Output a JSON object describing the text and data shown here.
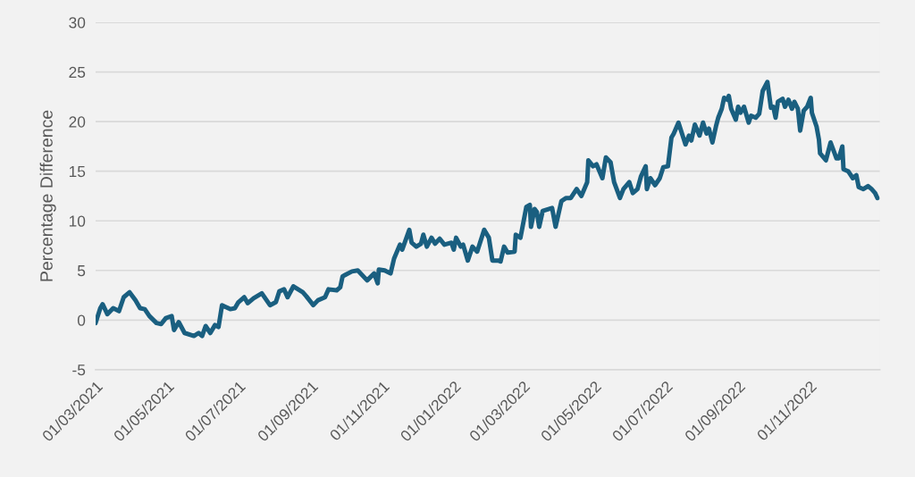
{
  "chart_data": {
    "type": "line",
    "ylabel": "Percentage Difference",
    "xlim": [
      "2021-03-01",
      "2022-12-31"
    ],
    "ylim": [
      -5,
      30
    ],
    "yticks": [
      -5,
      0,
      5,
      10,
      15,
      20,
      25,
      30
    ],
    "xticks": [
      {
        "value": "2021-03-01",
        "label": "01/03/2021"
      },
      {
        "value": "2021-05-01",
        "label": "01/05/2021"
      },
      {
        "value": "2021-07-01",
        "label": "01/07/2021"
      },
      {
        "value": "2021-09-01",
        "label": "01/09/2021"
      },
      {
        "value": "2021-11-01",
        "label": "01/11/2021"
      },
      {
        "value": "2022-01-01",
        "label": "01/01/2022"
      },
      {
        "value": "2022-03-01",
        "label": "01/03/2022"
      },
      {
        "value": "2022-05-01",
        "label": "01/05/2022"
      },
      {
        "value": "2022-07-01",
        "label": "01/07/2022"
      },
      {
        "value": "2022-09-01",
        "label": "01/09/2022"
      },
      {
        "value": "2022-11-01",
        "label": "01/11/2022"
      }
    ],
    "grid": "y",
    "legend": false,
    "marker": "none",
    "line_style": "solid",
    "x": [
      "2021-03-01",
      "2021-03-02",
      "2021-03-05",
      "2021-03-07",
      "2021-03-11",
      "2021-03-16",
      "2021-03-21",
      "2021-03-25",
      "2021-03-30",
      "2021-04-04",
      "2021-04-08",
      "2021-04-12",
      "2021-04-16",
      "2021-04-22",
      "2021-04-26",
      "2021-04-30",
      "2021-05-05",
      "2021-05-07",
      "2021-05-11",
      "2021-05-16",
      "2021-05-24",
      "2021-05-28",
      "2021-05-31",
      "2021-06-03",
      "2021-06-07",
      "2021-06-11",
      "2021-06-14",
      "2021-06-17",
      "2021-06-24",
      "2021-06-28",
      "2021-07-01",
      "2021-07-06",
      "2021-07-09",
      "2021-07-14",
      "2021-07-21",
      "2021-07-28",
      "2021-08-02",
      "2021-08-05",
      "2021-08-09",
      "2021-08-12",
      "2021-08-17",
      "2021-08-25",
      "2021-08-28",
      "2021-09-03",
      "2021-09-07",
      "2021-09-13",
      "2021-09-16",
      "2021-09-23",
      "2021-09-26",
      "2021-09-28",
      "2021-10-01",
      "2021-10-06",
      "2021-10-11",
      "2021-10-19",
      "2021-10-25",
      "2021-10-28",
      "2021-10-29",
      "2021-11-03",
      "2021-11-08",
      "2021-11-11",
      "2021-11-16",
      "2021-11-18",
      "2021-11-24",
      "2021-11-26",
      "2021-11-30",
      "2021-12-04",
      "2021-12-06",
      "2021-12-09",
      "2021-12-13",
      "2021-12-16",
      "2021-12-20",
      "2021-12-24",
      "2021-12-30",
      "2022-01-01",
      "2022-01-03",
      "2022-01-07",
      "2022-01-09",
      "2022-01-13",
      "2022-01-17",
      "2022-01-21",
      "2022-01-27",
      "2022-01-31",
      "2022-02-03",
      "2022-02-08",
      "2022-02-10",
      "2022-02-13",
      "2022-02-16",
      "2022-02-22",
      "2022-02-23",
      "2022-02-27",
      "2022-03-04",
      "2022-03-07",
      "2022-03-08",
      "2022-03-11",
      "2022-03-13",
      "2022-03-15",
      "2022-03-18",
      "2022-03-26",
      "2022-03-29",
      "2022-04-03",
      "2022-04-07",
      "2022-04-11",
      "2022-04-16",
      "2022-04-20",
      "2022-04-25",
      "2022-04-26",
      "2022-04-30",
      "2022-05-03",
      "2022-05-08",
      "2022-05-11",
      "2022-05-15",
      "2022-05-18",
      "2022-05-23",
      "2022-05-26",
      "2022-05-31",
      "2022-06-03",
      "2022-06-07",
      "2022-06-10",
      "2022-06-14",
      "2022-06-15",
      "2022-06-18",
      "2022-06-22",
      "2022-06-26",
      "2022-06-29",
      "2022-07-03",
      "2022-07-06",
      "2022-07-08",
      "2022-07-12",
      "2022-07-15",
      "2022-07-18",
      "2022-07-21",
      "2022-07-23",
      "2022-07-26",
      "2022-07-30",
      "2022-08-02",
      "2022-08-05",
      "2022-08-07",
      "2022-08-10",
      "2022-08-13",
      "2022-08-15",
      "2022-08-18",
      "2022-08-20",
      "2022-08-23",
      "2022-08-24",
      "2022-08-26",
      "2022-08-30",
      "2022-09-01",
      "2022-09-03",
      "2022-09-06",
      "2022-09-10",
      "2022-09-12",
      "2022-09-16",
      "2022-09-19",
      "2022-09-22",
      "2022-09-26",
      "2022-09-29",
      "2022-10-01",
      "2022-10-03",
      "2022-10-05",
      "2022-10-09",
      "2022-10-11",
      "2022-10-14",
      "2022-10-17",
      "2022-10-19",
      "2022-10-22",
      "2022-10-24",
      "2022-10-27",
      "2022-10-30",
      "2022-11-02",
      "2022-11-03",
      "2022-11-07",
      "2022-11-09",
      "2022-11-10",
      "2022-11-15",
      "2022-11-19",
      "2022-11-24",
      "2022-11-26",
      "2022-11-29",
      "2022-11-30",
      "2022-12-04",
      "2022-12-08",
      "2022-12-11",
      "2022-12-13",
      "2022-12-17",
      "2022-12-21",
      "2022-12-24",
      "2022-12-27",
      "2022-12-29"
    ],
    "series": [
      {
        "color": "#1a5f80",
        "values": [
          -0.3,
          0.1,
          1.2,
          1.6,
          0.6,
          1.2,
          0.9,
          2.3,
          2.8,
          2.0,
          1.2,
          1.1,
          0.4,
          -0.3,
          -0.4,
          0.2,
          0.4,
          -1.0,
          -0.2,
          -1.3,
          -1.6,
          -1.3,
          -1.6,
          -0.6,
          -1.3,
          -0.5,
          -0.7,
          1.5,
          1.1,
          1.2,
          1.8,
          2.3,
          1.7,
          2.2,
          2.7,
          1.5,
          1.8,
          2.9,
          3.1,
          2.3,
          3.4,
          2.8,
          2.4,
          1.5,
          2.0,
          2.3,
          3.1,
          3.0,
          3.3,
          4.4,
          4.6,
          4.9,
          5.0,
          4.0,
          4.7,
          3.7,
          5.1,
          5.0,
          4.7,
          6.2,
          7.6,
          7.1,
          9.1,
          7.8,
          7.4,
          7.7,
          8.6,
          7.4,
          8.3,
          7.7,
          8.2,
          7.6,
          7.8,
          7.1,
          8.3,
          7.4,
          7.6,
          6.0,
          7.4,
          6.9,
          9.1,
          8.3,
          6.0,
          6.0,
          5.9,
          7.4,
          6.8,
          6.9,
          8.6,
          8.3,
          11.4,
          11.6,
          9.4,
          11.2,
          10.9,
          9.4,
          11.0,
          11.3,
          9.4,
          12.0,
          12.3,
          12.3,
          13.2,
          12.5,
          13.9,
          16.1,
          15.5,
          15.7,
          14.3,
          16.4,
          15.9,
          13.9,
          12.3,
          13.2,
          13.9,
          12.8,
          13.2,
          14.5,
          15.5,
          13.2,
          14.3,
          13.6,
          14.3,
          15.4,
          15.5,
          18.4,
          18.8,
          19.9,
          18.8,
          17.7,
          18.6,
          18.1,
          19.7,
          18.6,
          19.9,
          18.8,
          19.3,
          17.9,
          19.5,
          20.4,
          21.3,
          22.4,
          22.2,
          22.6,
          21.3,
          20.2,
          21.5,
          20.9,
          21.5,
          19.9,
          20.6,
          20.4,
          20.8,
          23.1,
          24.0,
          21.4,
          21.5,
          20.4,
          22.0,
          22.3,
          21.5,
          22.2,
          21.3,
          22.0,
          21.3,
          19.1,
          21.1,
          21.5,
          22.4,
          20.9,
          19.5,
          18.2,
          16.8,
          16.1,
          17.9,
          16.3,
          16.3,
          17.5,
          15.2,
          15.0,
          14.3,
          14.6,
          13.4,
          13.2,
          13.5,
          13.2,
          12.8,
          12.3
        ]
      }
    ]
  }
}
